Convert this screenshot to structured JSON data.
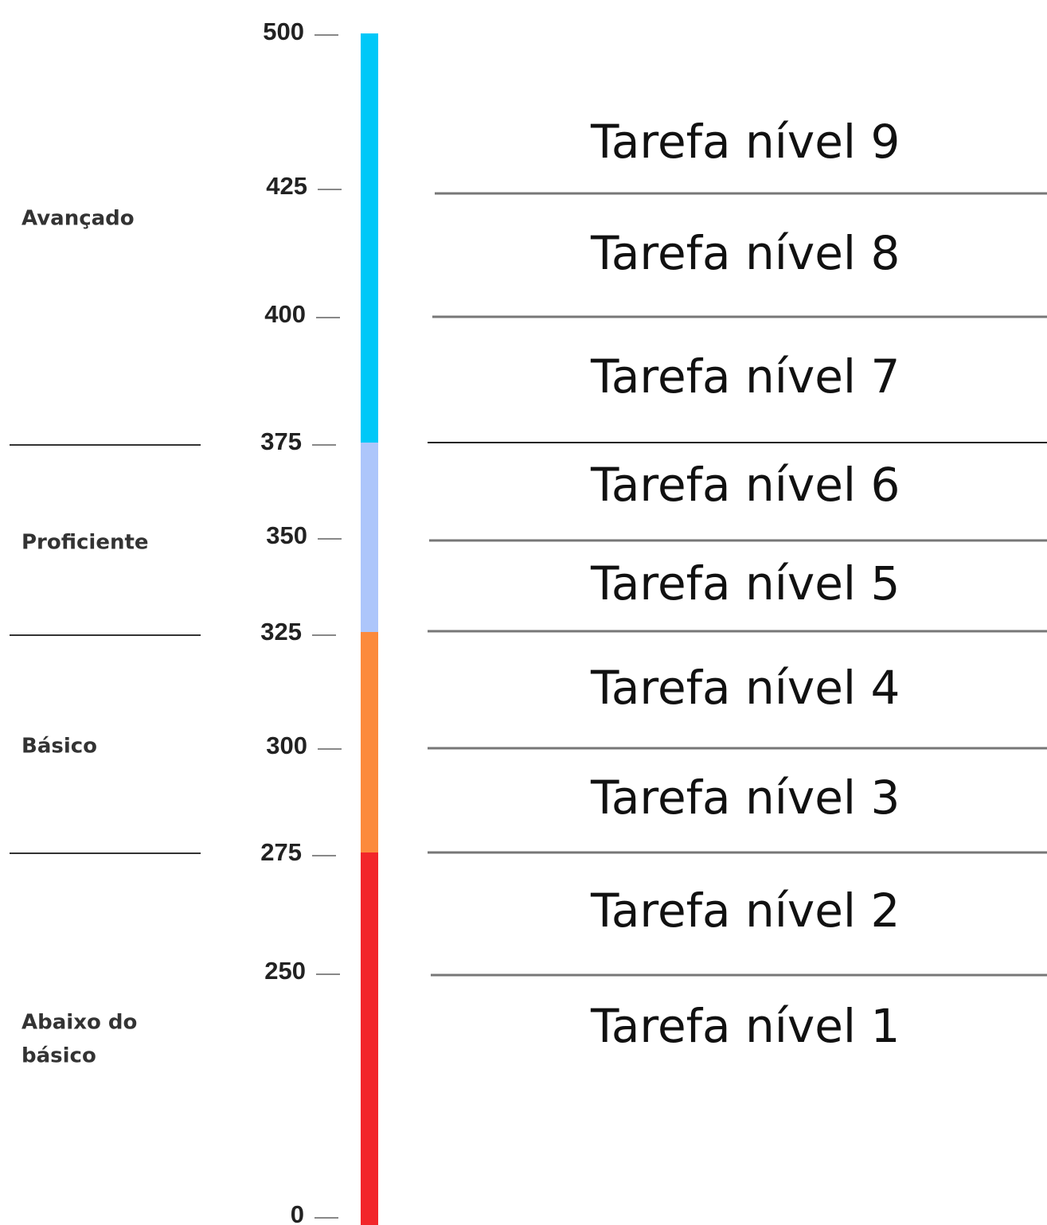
{
  "scale": {
    "ticks": [
      500,
      425,
      400,
      375,
      350,
      325,
      300,
      275,
      250,
      0
    ]
  },
  "levels": [
    [
      "Avançado"
    ],
    [
      "Proficiente"
    ],
    [
      "Básico"
    ],
    [
      "Abaixo do",
      "básico"
    ]
  ],
  "tasks": [
    "Tarefa nível 9",
    "Tarefa nível 8",
    "Tarefa nível 7",
    "Tarefa nível 6",
    "Tarefa nível 5",
    "Tarefa nível 4",
    "Tarefa nível 3",
    "Tarefa nível 2",
    "Tarefa nível 1"
  ]
}
